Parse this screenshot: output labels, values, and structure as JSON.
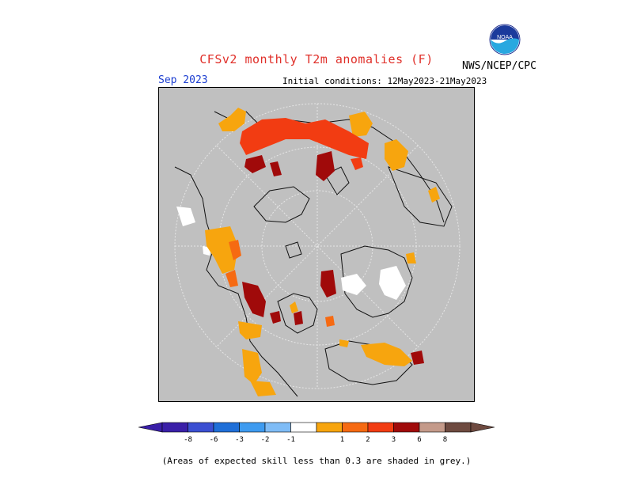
{
  "header": {
    "title": "CFSv2 monthly T2m anomalies (F)",
    "agency": "NWS/NCEP/CPC",
    "logo_text": "NOAA",
    "month": "Sep 2023",
    "initial_conditions": "Initial conditions: 12May2023-21May2023"
  },
  "legend": {
    "categories": [
      {
        "label": "-8",
        "color": "#3a1fa8"
      },
      {
        "label": "-6",
        "color": "#3b4fd2"
      },
      {
        "label": "-3",
        "color": "#1f6fd8"
      },
      {
        "label": "-2",
        "color": "#3e9bf0"
      },
      {
        "label": "-1",
        "color": "#7fbcf6"
      },
      {
        "label": "",
        "color": "#ffffff"
      },
      {
        "label": "1",
        "color": "#f7a50e"
      },
      {
        "label": "2",
        "color": "#f66a12"
      },
      {
        "label": "3",
        "color": "#f23c12"
      },
      {
        "label": "6",
        "color": "#a00a0a"
      },
      {
        "label": "8",
        "color": "#c49a8a"
      },
      {
        "label": "",
        "color": "#6e4a40"
      }
    ]
  },
  "footnote": "(Areas of expected skill less than 0.3 are shaded in grey.)",
  "colors": {
    "skill_mask": "#c0c0c0",
    "title": "#e0302a",
    "month": "#1a3cd0",
    "grid": "#e6e6e6"
  }
}
